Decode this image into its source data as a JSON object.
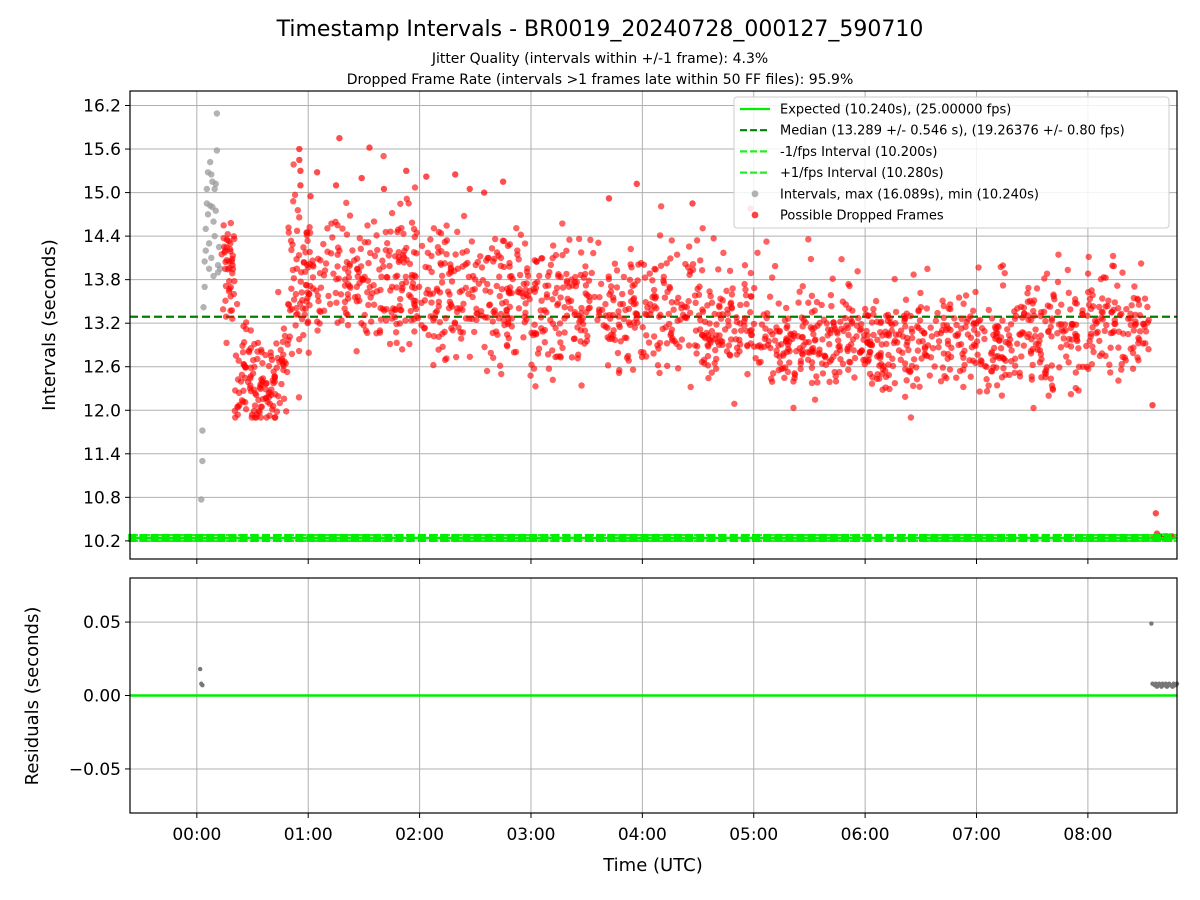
{
  "title": "Timestamp Intervals - BR0019_20240728_000127_590710",
  "subtitle_1": "Jitter Quality (intervals within +/-1 frame): 4.3%",
  "subtitle_2": "Dropped Frame Rate (intervals >1 frames late within 50 FF files): 95.9%",
  "colors": {
    "expected": "#00ee00",
    "median": "#008000",
    "fps_interval": "#22ee22",
    "intervals": "#999999",
    "dropped": "#ff0000",
    "residuals": "#777777"
  },
  "chart_data": [
    {
      "type": "scatter",
      "panel": "top",
      "ylabel": "Intervals (seconds)",
      "xlabel": "",
      "xlim_hours": [
        -0.6,
        8.8
      ],
      "ylim": [
        9.95,
        16.4
      ],
      "yticks": [
        "10.2",
        "10.8",
        "11.4",
        "12.0",
        "12.6",
        "13.2",
        "13.8",
        "14.4",
        "15.0",
        "15.6",
        "16.2"
      ],
      "grid": true,
      "legend_position": "top-right",
      "legend": [
        {
          "label": "Expected (10.240s), (25.00000 fps)",
          "style": "solid-line",
          "color": "#00ee00"
        },
        {
          "label": "Median (13.289 +/- 0.546 s), (19.26376 +/- 0.80 fps)",
          "style": "dashed-line",
          "color": "#008000"
        },
        {
          "label": "-1/fps Interval (10.200s)",
          "style": "dashed-line",
          "color": "#22ee22"
        },
        {
          "label": "+1/fps Interval (10.280s)",
          "style": "dashed-line",
          "color": "#22ee22"
        },
        {
          "label": "Intervals, max (16.089s), min (10.240s)",
          "style": "marker",
          "color": "#999999"
        },
        {
          "label": "Possible Dropped Frames",
          "style": "marker",
          "color": "#ff0000"
        }
      ],
      "reference_lines": {
        "expected": 10.24,
        "median": 13.289,
        "minus_fps": 10.2,
        "plus_fps": 10.28
      },
      "series": [
        {
          "name": "Intervals, max (16.089s), min (10.240s)",
          "points": [
            [
              0.03,
              10.24
            ],
            [
              0.04,
              10.77
            ],
            [
              0.05,
              11.3
            ],
            [
              0.05,
              11.72
            ],
            [
              0.06,
              13.42
            ],
            [
              0.07,
              13.7
            ],
            [
              0.07,
              14.05
            ],
            [
              0.08,
              14.2
            ],
            [
              0.08,
              14.5
            ],
            [
              0.09,
              14.85
            ],
            [
              0.09,
              15.05
            ],
            [
              0.1,
              15.28
            ],
            [
              0.1,
              14.7
            ],
            [
              0.11,
              14.3
            ],
            [
              0.11,
              13.95
            ],
            [
              0.12,
              15.42
            ],
            [
              0.12,
              14.82
            ],
            [
              0.13,
              15.25
            ],
            [
              0.13,
              14.1
            ],
            [
              0.14,
              14.8
            ],
            [
              0.14,
              15.15
            ],
            [
              0.15,
              14.6
            ],
            [
              0.15,
              13.85
            ],
            [
              0.16,
              15.05
            ],
            [
              0.16,
              14.4
            ],
            [
              0.17,
              15.12
            ],
            [
              0.17,
              14.75
            ],
            [
              0.18,
              16.09
            ],
            [
              0.18,
              15.58
            ],
            [
              0.19,
              14.0
            ],
            [
              0.19,
              13.9
            ],
            [
              0.2,
              14.25
            ],
            [
              0.21,
              13.95
            ]
          ]
        },
        {
          "name": "Possible Dropped Frames",
          "segments": [
            {
              "x0": 0.22,
              "x1": 0.34,
              "y": 13.85,
              "spread": 0.35,
              "n": 40
            },
            {
              "x0": 0.34,
              "x1": 0.52,
              "y": 12.45,
              "spread": 0.35,
              "n": 50
            },
            {
              "x0": 0.52,
              "x1": 0.72,
              "y": 12.3,
              "spread": 0.3,
              "n": 60
            },
            {
              "x0": 0.72,
              "x1": 0.82,
              "y": 12.6,
              "spread": 0.4,
              "n": 22
            },
            {
              "x0": 0.82,
              "x1": 1.0,
              "y": 13.8,
              "spread": 0.55,
              "n": 60
            },
            {
              "x0": 1.0,
              "x1": 2.0,
              "y": 13.75,
              "spread": 0.45,
              "n": 220
            },
            {
              "x0": 2.0,
              "x1": 3.0,
              "y": 13.55,
              "spread": 0.45,
              "n": 220
            },
            {
              "x0": 3.0,
              "x1": 4.0,
              "y": 13.4,
              "spread": 0.42,
              "n": 210
            },
            {
              "x0": 4.0,
              "x1": 4.55,
              "y": 13.4,
              "spread": 0.42,
              "n": 110
            },
            {
              "x0": 4.55,
              "x1": 5.0,
              "y": 13.15,
              "spread": 0.35,
              "n": 100
            },
            {
              "x0": 5.0,
              "x1": 6.0,
              "y": 12.95,
              "spread": 0.32,
              "n": 210
            },
            {
              "x0": 6.0,
              "x1": 7.0,
              "y": 12.9,
              "spread": 0.32,
              "n": 210
            },
            {
              "x0": 7.0,
              "x1": 7.4,
              "y": 12.85,
              "spread": 0.32,
              "n": 80
            },
            {
              "x0": 7.4,
              "x1": 8.0,
              "y": 13.05,
              "spread": 0.38,
              "n": 120
            },
            {
              "x0": 8.0,
              "x1": 8.55,
              "y": 13.15,
              "spread": 0.32,
              "n": 110
            }
          ],
          "outliers": [
            [
              0.92,
              15.6
            ],
            [
              0.92,
              15.45
            ],
            [
              0.93,
              15.3
            ],
            [
              0.93,
              15.1
            ],
            [
              1.28,
              15.75
            ],
            [
              1.55,
              15.62
            ],
            [
              1.08,
              15.28
            ],
            [
              1.88,
              15.3
            ],
            [
              2.06,
              15.22
            ],
            [
              2.32,
              15.25
            ],
            [
              1.25,
              15.1
            ],
            [
              1.68,
              15.05
            ],
            [
              2.45,
              15.05
            ],
            [
              2.75,
              15.15
            ],
            [
              3.95,
              15.12
            ],
            [
              4.45,
              14.85
            ],
            [
              3.7,
              14.92
            ],
            [
              2.58,
              15.0
            ],
            [
              1.48,
              15.2
            ],
            [
              1.02,
              14.95
            ],
            [
              0.27,
              14.35
            ],
            [
              0.29,
              14.05
            ],
            [
              0.32,
              14.0
            ],
            [
              8.58,
              12.07
            ],
            [
              8.61,
              10.58
            ],
            [
              8.62,
              10.3
            ],
            [
              8.65,
              10.26
            ],
            [
              8.68,
              10.26
            ],
            [
              8.7,
              10.26
            ],
            [
              8.72,
              10.25
            ],
            [
              8.74,
              10.26
            ],
            [
              8.76,
              10.26
            ],
            [
              8.59,
              10.25
            ],
            [
              8.63,
              10.25
            ],
            [
              8.67,
              10.25
            ],
            [
              8.71,
              10.26
            ]
          ]
        }
      ]
    },
    {
      "type": "scatter",
      "panel": "bottom",
      "ylabel": "Residuals (seconds)",
      "xlabel": "Time (UTC)",
      "xlim_hours": [
        -0.6,
        8.8
      ],
      "ylim": [
        -0.08,
        0.08
      ],
      "yticks": [
        "0.05",
        "0.00",
        "−0.05"
      ],
      "xticks": [
        "00:00",
        "01:00",
        "02:00",
        "03:00",
        "04:00",
        "05:00",
        "06:00",
        "07:00",
        "08:00"
      ],
      "grid": true,
      "series": [
        {
          "name": "Residuals",
          "points": [
            [
              0.03,
              0.018
            ],
            [
              0.04,
              0.008
            ],
            [
              0.05,
              0.007
            ],
            [
              8.57,
              0.049
            ],
            [
              8.58,
              0.008
            ],
            [
              8.6,
              0.007
            ],
            [
              8.61,
              0.008
            ],
            [
              8.62,
              0.006
            ],
            [
              8.63,
              0.007
            ],
            [
              8.64,
              0.008
            ],
            [
              8.65,
              0.007
            ],
            [
              8.66,
              0.006
            ],
            [
              8.67,
              0.008
            ],
            [
              8.68,
              0.007
            ],
            [
              8.69,
              0.007
            ],
            [
              8.7,
              0.008
            ],
            [
              8.71,
              0.006
            ],
            [
              8.72,
              0.007
            ],
            [
              8.73,
              0.008
            ],
            [
              8.74,
              0.007
            ],
            [
              8.75,
              0.007
            ],
            [
              8.76,
              0.006
            ],
            [
              8.77,
              0.008
            ],
            [
              8.78,
              0.007
            ],
            [
              8.79,
              0.007
            ],
            [
              8.8,
              0.008
            ]
          ]
        }
      ]
    }
  ]
}
